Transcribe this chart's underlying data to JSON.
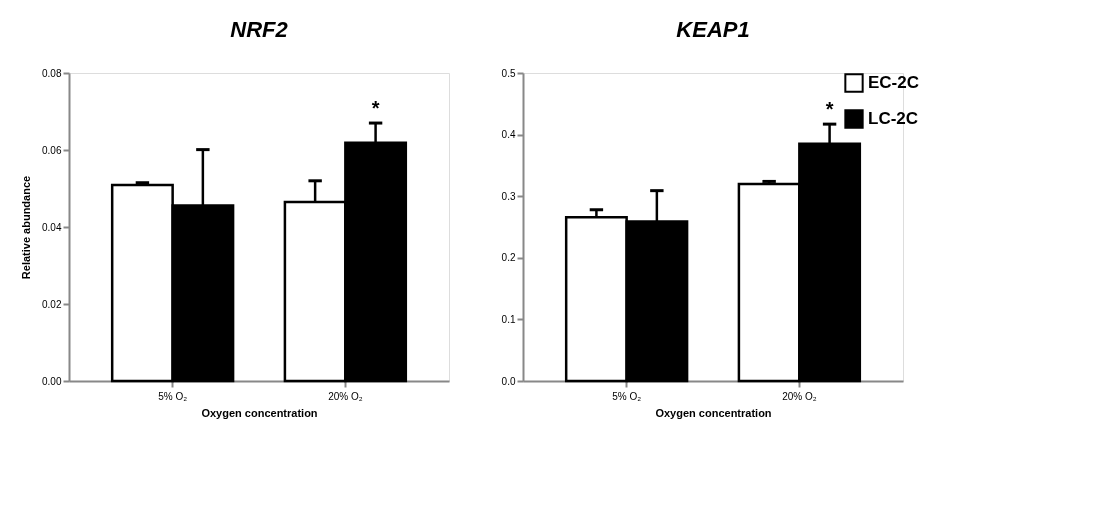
{
  "chart_data": [
    {
      "type": "bar",
      "title": "NRF2",
      "xlabel": "Oxygen concentration",
      "ylabel": "Relative abundance",
      "categories": [
        "5% O₂",
        "20% O₂"
      ],
      "series": [
        {
          "name": "EC-2C",
          "color": "#ffffff",
          "values": [
            0.0509,
            0.0465
          ],
          "errors": [
            [
              0.0509,
              0.0515
            ],
            [
              0.0465,
              0.052
            ]
          ]
        },
        {
          "name": "LC-2C",
          "color": "#000000",
          "values": [
            0.0456,
            0.0619
          ],
          "errors": [
            [
              0.0456,
              0.0601
            ],
            [
              0.0619,
              0.067
            ]
          ]
        }
      ],
      "ylim": [
        0,
        0.08
      ],
      "yticks": [
        {
          "value": 0,
          "label": "0.00"
        },
        0.02,
        0.04,
        0.06,
        0.08
      ],
      "grid": false,
      "legend": "top right",
      "annotations": [
        "*"
      ]
    },
    {
      "type": "bar",
      "title": "KEAP1",
      "xlabel": "Oxygen concentration",
      "categories": [
        "5% O₂",
        "20% O₂"
      ],
      "series": [
        {
          "name": "EC-2C",
          "color": "#ffffff",
          "values": [
            0.266,
            0.32
          ],
          "errors": [
            [
              0.266,
              0.278
            ],
            [
              0.32,
              0.324
            ]
          ]
        },
        {
          "name": "LC-2C",
          "color": "#000000",
          "values": [
            0.259,
            0.385
          ],
          "errors": [
            [
              0.259,
              0.309
            ],
            [
              0.385,
              0.417
            ]
          ]
        }
      ],
      "ylim": [
        0,
        0.5
      ],
      "yticks": [
        {
          "value": 0,
          "label": "0.0"
        },
        0.1,
        0.2,
        0.3,
        0.4,
        0.5
      ],
      "grid": false,
      "legend": "top right",
      "annotations": [
        "*"
      ]
    }
  ]
}
